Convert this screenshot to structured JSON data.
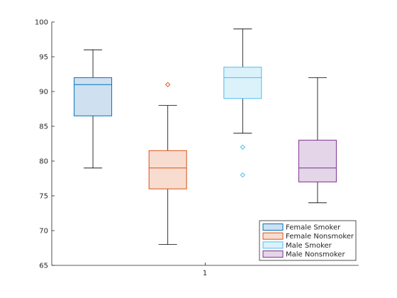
{
  "chart_data": {
    "type": "box",
    "categories": [
      "1"
    ],
    "ylim": [
      65,
      100
    ],
    "yticks": [
      65,
      70,
      75,
      80,
      85,
      90,
      95,
      100
    ],
    "grid": false,
    "legend_location": "bottom-right",
    "series": [
      {
        "name": "Female Smoker",
        "color": "#0072BD",
        "fill": "#cfe0f0",
        "whisker_low": 79,
        "q1": 86.5,
        "median": 91,
        "q3": 92,
        "whisker_high": 96,
        "outliers": []
      },
      {
        "name": "Female Nonsmoker",
        "color": "#D95319",
        "fill": "#f8dccf",
        "whisker_low": 68,
        "q1": 76,
        "median": 79,
        "q3": 81.5,
        "whisker_high": 88,
        "outliers": [
          91
        ]
      },
      {
        "name": "Male Smoker",
        "color": "#4DBEEE",
        "fill": "#dbf2fb",
        "whisker_low": 84,
        "q1": 89,
        "median": 92,
        "q3": 93.5,
        "whisker_high": 99,
        "outliers": [
          82,
          78
        ]
      },
      {
        "name": "Male Nonsmoker",
        "color": "#7E2F8E",
        "fill": "#e5d5e8",
        "whisker_low": 74,
        "q1": 77,
        "median": 79,
        "q3": 83,
        "whisker_high": 92,
        "outliers": []
      }
    ]
  }
}
